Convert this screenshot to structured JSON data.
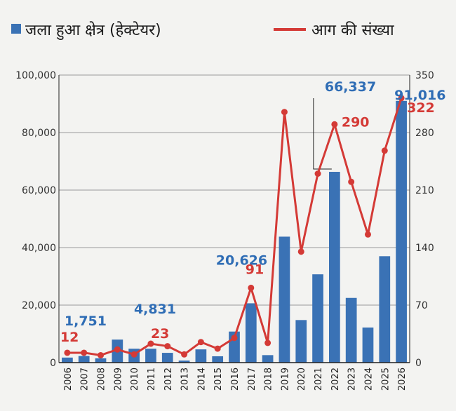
{
  "chart_data": {
    "type": "bar+line",
    "legend": {
      "bar_label": "जला हुआ क्षेत्र (हेक्टेयर)",
      "line_label": "आग की संख्या",
      "placement": "top"
    },
    "categories": [
      "2006",
      "2007",
      "2008",
      "2009",
      "2010",
      "2011",
      "2012",
      "2013",
      "2014",
      "2015",
      "2016",
      "2017",
      "2018",
      "2019",
      "2020",
      "2021",
      "2022",
      "2023",
      "2024",
      "2025",
      "2026"
    ],
    "series": [
      {
        "name": "जला हुआ क्षेत्र (हेक्टेयर)",
        "type": "bar",
        "axis": "left",
        "color": "#3a72b5",
        "values": [
          1751,
          2300,
          1500,
          8000,
          4831,
          4831,
          3400,
          700,
          4600,
          2200,
          10800,
          20626,
          2600,
          43800,
          14800,
          30700,
          66337,
          22500,
          12200,
          37000,
          91016
        ]
      },
      {
        "name": "आग की संख्या",
        "type": "line",
        "axis": "right",
        "color": "#d43a36",
        "values": [
          12,
          12,
          9,
          16,
          10,
          23,
          20,
          10,
          25,
          17,
          30,
          91,
          24,
          305,
          135,
          230,
          290,
          220,
          156,
          258,
          322
        ]
      }
    ],
    "left_axis": {
      "min": 0,
      "max": 100000,
      "ticks": [
        "0",
        "20,000",
        "40,000",
        "60,000",
        "80,000",
        "100,000"
      ]
    },
    "right_axis": {
      "min": 0,
      "max": 350,
      "ticks": [
        "0",
        "70",
        "140",
        "210",
        "280",
        "350"
      ]
    },
    "grid": true,
    "annotations": [
      {
        "series": "bar",
        "index": 0,
        "text": "1,751"
      },
      {
        "series": "line",
        "index": 0,
        "text": "12"
      },
      {
        "series": "bar",
        "index": 5,
        "text": "4,831"
      },
      {
        "series": "line",
        "index": 5,
        "text": "23"
      },
      {
        "series": "bar",
        "index": 11,
        "text": "20,626"
      },
      {
        "series": "line",
        "index": 11,
        "text": "91"
      },
      {
        "series": "bar",
        "index": 16,
        "text": "66,337"
      },
      {
        "series": "line",
        "index": 16,
        "text": "290"
      },
      {
        "series": "bar",
        "index": 20,
        "text": "91,016"
      },
      {
        "series": "line",
        "index": 20,
        "text": "322"
      }
    ]
  }
}
